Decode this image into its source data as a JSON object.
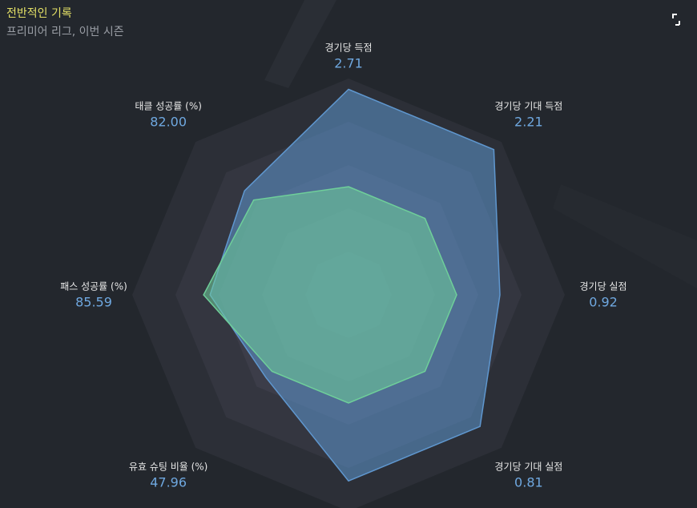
{
  "chart_data": {
    "type": "radar",
    "title": "전반적인 기록",
    "subtitle": "프리미어 리그, 이번 시즌",
    "categories": [
      "경기당 득점",
      "경기당 기대 득점",
      "경기당 실점",
      "경기당 기대 실점",
      null,
      "유효 슈팅 비율 (%)",
      "패스 성공률 (%)",
      "태클 성공률 (%)"
    ],
    "axis_values": [
      "2.71",
      "2.21",
      "0.92",
      "0.81",
      null,
      "47.96",
      "85.59",
      "82.00"
    ],
    "rlim": [
      0,
      100
    ],
    "series": [
      {
        "color": "#5f97cf",
        "values": [
          95,
          95,
          70,
          86,
          86,
          54,
          64,
          68
        ]
      },
      {
        "color": "#6fcf9a",
        "values": [
          50,
          50,
          50,
          50,
          50,
          50,
          67,
          62
        ]
      }
    ]
  }
}
